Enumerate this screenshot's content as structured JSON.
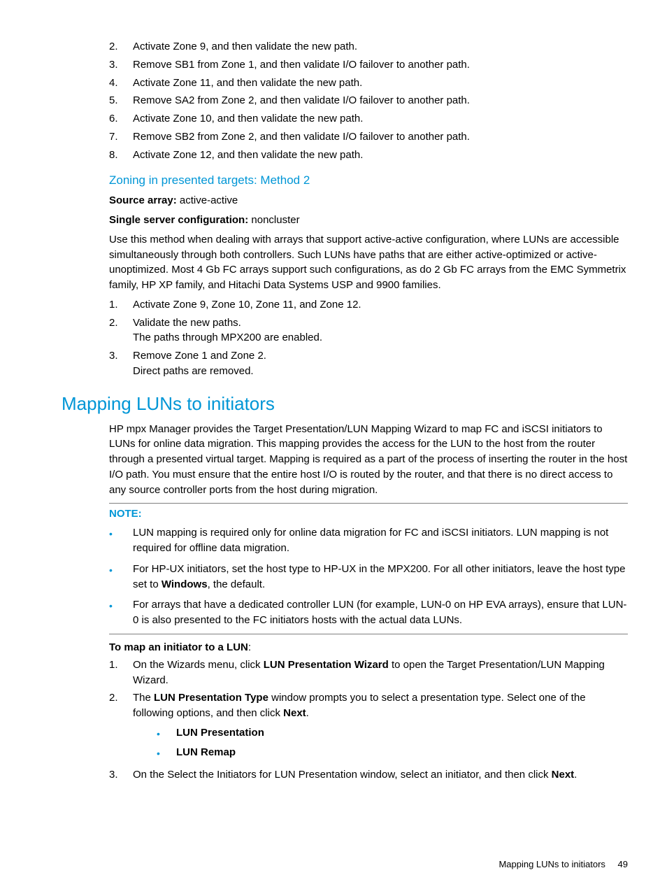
{
  "topList": [
    {
      "n": "2.",
      "t": "Activate Zone 9, and then validate the new path."
    },
    {
      "n": "3.",
      "t": "Remove SB1 from Zone 1, and then validate I/O failover to another path."
    },
    {
      "n": "4.",
      "t": "Activate Zone 11, and then validate the new path."
    },
    {
      "n": "5.",
      "t": "Remove SA2 from Zone 2, and then validate I/O failover to another path."
    },
    {
      "n": "6.",
      "t": "Activate Zone 10, and then validate the new path."
    },
    {
      "n": "7.",
      "t": "Remove SB2 from Zone 2, and then validate I/O failover to another path."
    },
    {
      "n": "8.",
      "t": "Activate Zone 12, and then validate the new path."
    }
  ],
  "zoningHeading": "Zoning in presented targets: Method 2",
  "sourceArrayLabel": "Source array:",
  "sourceArrayValue": " active-active",
  "singleServerLabel": "Single server configuration:",
  "singleServerValue": " noncluster",
  "zoningPara": "Use this method when dealing with arrays that support active-active configuration, where LUNs are accessible simultaneously through both controllers. Such LUNs have paths that are either active-optimized or active-unoptimized. Most 4 Gb FC arrays support such configurations, as do 2 Gb FC arrays from the EMC Symmetrix family, HP XP family, and Hitachi Data Systems USP and 9900 families.",
  "zoningList": [
    {
      "n": "1.",
      "lines": [
        "Activate Zone 9, Zone 10, Zone 11, and Zone 12."
      ]
    },
    {
      "n": "2.",
      "lines": [
        "Validate the new paths.",
        "The paths through MPX200 are enabled."
      ]
    },
    {
      "n": "3.",
      "lines": [
        "Remove Zone 1 and Zone 2.",
        "Direct paths are removed."
      ]
    }
  ],
  "mappingHeading": "Mapping LUNs to initiators",
  "mappingPara": "HP mpx Manager provides the Target Presentation/LUN Mapping Wizard to map FC and iSCSI initiators to LUNs for online data migration. This mapping provides the access for the LUN to the host from the router through a presented virtual target. Mapping is required as a part of the process of inserting the router in the host I/O path. You must ensure that the entire host I/O is routed by the router, and that there is no direct access to any source controller ports from the host during migration.",
  "noteLabel": "NOTE:",
  "noteBullets": [
    {
      "pre": "LUN mapping is required only for online data migration for FC and iSCSI initiators. LUN mapping is not required for offline data migration."
    },
    {
      "pre": "For HP-UX initiators, set the host type to HP-UX in the MPX200. For all other initiators, leave the host type set to ",
      "bold": "Windows",
      "post": ", the default."
    },
    {
      "pre": "For arrays that have a dedicated controller LUN (for example, LUN-0 on HP EVA arrays), ensure that LUN-0 is also presented to the FC initiators hosts with the actual data LUNs."
    }
  ],
  "toMapLabel": "To map an initiator to a LUN",
  "toMapColon": ":",
  "mapList": [
    {
      "n": "1.",
      "segs": [
        {
          "t": "On the Wizards menu, click "
        },
        {
          "t": "LUN Presentation Wizard",
          "b": true
        },
        {
          "t": " to open the Target Presentation/LUN Mapping Wizard."
        }
      ]
    },
    {
      "n": "2.",
      "segs": [
        {
          "t": "The "
        },
        {
          "t": "LUN Presentation Type",
          "b": true
        },
        {
          "t": " window prompts you to select a presentation type. Select one of the following options, and then click "
        },
        {
          "t": "Next",
          "b": true
        },
        {
          "t": "."
        }
      ],
      "subs": [
        "LUN Presentation",
        "LUN Remap"
      ]
    },
    {
      "n": "3.",
      "segs": [
        {
          "t": "On the Select the Initiators for LUN Presentation window, select an initiator, and then click "
        },
        {
          "t": "Next",
          "b": true
        },
        {
          "t": "."
        }
      ]
    }
  ],
  "footerText": "Mapping LUNs to initiators",
  "footerPage": "49"
}
